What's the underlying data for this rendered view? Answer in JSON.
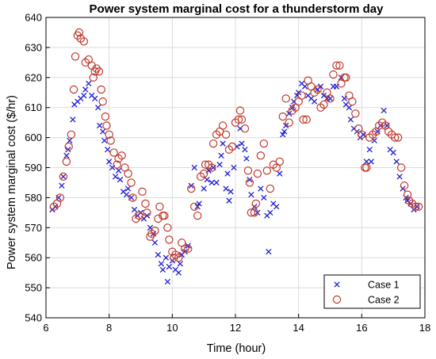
{
  "chart_data": {
    "type": "scatter",
    "title": "Power system marginal cost for a thunderstorm day",
    "xlabel": "Time (hour)",
    "ylabel": "Power system marginal cost ($/hr)",
    "xlim": [
      6,
      18
    ],
    "ylim": [
      540,
      640
    ],
    "xticks": [
      6,
      8,
      10,
      12,
      14,
      16,
      18
    ],
    "yticks": [
      540,
      550,
      560,
      570,
      580,
      590,
      600,
      610,
      620,
      630,
      640
    ],
    "grid": true,
    "legend_position": "bottom-right",
    "series": [
      {
        "name": "Case 1",
        "marker": "x",
        "color": "#1f1fd0",
        "points": [
          [
            6.2,
            576
          ],
          [
            6.3,
            577
          ],
          [
            6.4,
            580
          ],
          [
            6.5,
            584
          ],
          [
            6.55,
            587
          ],
          [
            6.65,
            594
          ],
          [
            6.7,
            596
          ],
          [
            6.75,
            599
          ],
          [
            6.85,
            606
          ],
          [
            6.9,
            611
          ],
          [
            7.0,
            612
          ],
          [
            7.1,
            613
          ],
          [
            7.2,
            614
          ],
          [
            7.25,
            616
          ],
          [
            7.35,
            618
          ],
          [
            7.45,
            614
          ],
          [
            7.55,
            613
          ],
          [
            7.65,
            610
          ],
          [
            7.7,
            604
          ],
          [
            7.8,
            602
          ],
          [
            7.85,
            599
          ],
          [
            7.95,
            596
          ],
          [
            8.0,
            592
          ],
          [
            8.1,
            590
          ],
          [
            8.2,
            587
          ],
          [
            8.3,
            589
          ],
          [
            8.35,
            586
          ],
          [
            8.45,
            582
          ],
          [
            8.55,
            581
          ],
          [
            8.6,
            583
          ],
          [
            8.7,
            580
          ],
          [
            8.8,
            576
          ],
          [
            8.9,
            574
          ],
          [
            9.0,
            575
          ],
          [
            9.1,
            573
          ],
          [
            9.2,
            574
          ],
          [
            9.3,
            570
          ],
          [
            9.4,
            568
          ],
          [
            9.45,
            565
          ],
          [
            9.55,
            561
          ],
          [
            9.65,
            558
          ],
          [
            9.7,
            556
          ],
          [
            9.8,
            560
          ],
          [
            9.85,
            552
          ],
          [
            9.9,
            557
          ],
          [
            10.0,
            559
          ],
          [
            10.1,
            556
          ],
          [
            10.2,
            555
          ],
          [
            10.25,
            558
          ],
          [
            10.3,
            561
          ],
          [
            10.4,
            562
          ],
          [
            10.5,
            564
          ],
          [
            10.6,
            584
          ],
          [
            10.7,
            590
          ],
          [
            10.8,
            577
          ],
          [
            10.85,
            578
          ],
          [
            11.0,
            583
          ],
          [
            11.1,
            586
          ],
          [
            11.15,
            589
          ],
          [
            11.25,
            585
          ],
          [
            11.3,
            590
          ],
          [
            11.4,
            585
          ],
          [
            11.5,
            591
          ],
          [
            11.55,
            594
          ],
          [
            11.6,
            598
          ],
          [
            11.7,
            583
          ],
          [
            11.75,
            588
          ],
          [
            11.8,
            579
          ],
          [
            11.85,
            582
          ],
          [
            11.95,
            590
          ],
          [
            12.05,
            597
          ],
          [
            12.15,
            603
          ],
          [
            12.2,
            598
          ],
          [
            12.3,
            596
          ],
          [
            12.35,
            593
          ],
          [
            12.45,
            586
          ],
          [
            12.5,
            581
          ],
          [
            12.6,
            577
          ],
          [
            12.7,
            575
          ],
          [
            12.8,
            583
          ],
          [
            12.9,
            580
          ],
          [
            13.0,
            574
          ],
          [
            13.05,
            562
          ],
          [
            13.1,
            575
          ],
          [
            13.2,
            578
          ],
          [
            13.3,
            577
          ],
          [
            13.4,
            588
          ],
          [
            13.5,
            601
          ],
          [
            13.55,
            602
          ],
          [
            13.6,
            604
          ],
          [
            13.7,
            608
          ],
          [
            13.8,
            610
          ],
          [
            13.85,
            612
          ],
          [
            13.95,
            614
          ],
          [
            14.0,
            615
          ],
          [
            14.1,
            618
          ],
          [
            14.2,
            617
          ],
          [
            14.3,
            614
          ],
          [
            14.4,
            613
          ],
          [
            14.5,
            612
          ],
          [
            14.6,
            616
          ],
          [
            14.7,
            617
          ],
          [
            14.8,
            614
          ],
          [
            14.9,
            613
          ],
          [
            15.0,
            613
          ],
          [
            15.1,
            617
          ],
          [
            15.2,
            617
          ],
          [
            15.35,
            620
          ],
          [
            15.45,
            613
          ],
          [
            15.5,
            611
          ],
          [
            15.6,
            610
          ],
          [
            15.65,
            606
          ],
          [
            15.75,
            603
          ],
          [
            15.85,
            602
          ],
          [
            15.95,
            600
          ],
          [
            16.05,
            601
          ],
          [
            16.15,
            592
          ],
          [
            16.25,
            596
          ],
          [
            16.3,
            592
          ],
          [
            16.4,
            599
          ],
          [
            16.5,
            602
          ],
          [
            16.6,
            604
          ],
          [
            16.7,
            609
          ],
          [
            16.8,
            604
          ],
          [
            16.9,
            596
          ],
          [
            17.0,
            595
          ],
          [
            17.1,
            592
          ],
          [
            17.2,
            587
          ],
          [
            17.3,
            583
          ],
          [
            17.4,
            580
          ],
          [
            17.45,
            579
          ],
          [
            17.55,
            578
          ],
          [
            17.65,
            576
          ],
          [
            17.75,
            577
          ]
        ]
      },
      {
        "name": "Case 2",
        "marker": "o",
        "color": "#c0392b",
        "points": [
          [
            6.25,
            577
          ],
          [
            6.35,
            578
          ],
          [
            6.45,
            580
          ],
          [
            6.55,
            587
          ],
          [
            6.65,
            592
          ],
          [
            6.72,
            597
          ],
          [
            6.8,
            601
          ],
          [
            6.88,
            616
          ],
          [
            6.93,
            627
          ],
          [
            7.0,
            634
          ],
          [
            7.05,
            635
          ],
          [
            7.1,
            633
          ],
          [
            7.2,
            632
          ],
          [
            7.25,
            625
          ],
          [
            7.35,
            626
          ],
          [
            7.45,
            624
          ],
          [
            7.5,
            620
          ],
          [
            7.55,
            622
          ],
          [
            7.6,
            623
          ],
          [
            7.68,
            622
          ],
          [
            7.75,
            616
          ],
          [
            7.8,
            612
          ],
          [
            7.88,
            607
          ],
          [
            7.92,
            604
          ],
          [
            8.0,
            601
          ],
          [
            8.05,
            599
          ],
          [
            8.15,
            595
          ],
          [
            8.25,
            591
          ],
          [
            8.3,
            593
          ],
          [
            8.4,
            594
          ],
          [
            8.5,
            590
          ],
          [
            8.6,
            588
          ],
          [
            8.7,
            585
          ],
          [
            8.75,
            580
          ],
          [
            8.85,
            573
          ],
          [
            8.95,
            574
          ],
          [
            9.05,
            582
          ],
          [
            9.15,
            578
          ],
          [
            9.2,
            575
          ],
          [
            9.3,
            567
          ],
          [
            9.35,
            568
          ],
          [
            9.45,
            569
          ],
          [
            9.55,
            573
          ],
          [
            9.6,
            577
          ],
          [
            9.7,
            574
          ],
          [
            9.75,
            574
          ],
          [
            9.85,
            570
          ],
          [
            9.9,
            566
          ],
          [
            10.0,
            562
          ],
          [
            10.05,
            560
          ],
          [
            10.1,
            561
          ],
          [
            10.2,
            560
          ],
          [
            10.3,
            565
          ],
          [
            10.4,
            563
          ],
          [
            10.5,
            563
          ],
          [
            10.6,
            583
          ],
          [
            10.7,
            577
          ],
          [
            10.8,
            574
          ],
          [
            10.9,
            587
          ],
          [
            11.0,
            588
          ],
          [
            11.05,
            591
          ],
          [
            11.15,
            591
          ],
          [
            11.25,
            590
          ],
          [
            11.3,
            598
          ],
          [
            11.4,
            601
          ],
          [
            11.5,
            602
          ],
          [
            11.6,
            604
          ],
          [
            11.7,
            601
          ],
          [
            11.8,
            596
          ],
          [
            11.9,
            597
          ],
          [
            12.0,
            605
          ],
          [
            12.1,
            606
          ],
          [
            12.15,
            609
          ],
          [
            12.2,
            606
          ],
          [
            12.3,
            603
          ],
          [
            12.4,
            589
          ],
          [
            12.45,
            585
          ],
          [
            12.5,
            575
          ],
          [
            12.6,
            575
          ],
          [
            12.65,
            578
          ],
          [
            12.7,
            588
          ],
          [
            12.8,
            594
          ],
          [
            12.9,
            598
          ],
          [
            13.0,
            589
          ],
          [
            13.1,
            583
          ],
          [
            13.2,
            591
          ],
          [
            13.3,
            590
          ],
          [
            13.4,
            592
          ],
          [
            13.5,
            607
          ],
          [
            13.6,
            613
          ],
          [
            13.7,
            605
          ],
          [
            13.8,
            609
          ],
          [
            13.9,
            610
          ],
          [
            14.0,
            612
          ],
          [
            14.1,
            614
          ],
          [
            14.15,
            606
          ],
          [
            14.25,
            606
          ],
          [
            14.3,
            619
          ],
          [
            14.4,
            617
          ],
          [
            14.5,
            615
          ],
          [
            14.6,
            616
          ],
          [
            14.7,
            610
          ],
          [
            14.8,
            611
          ],
          [
            14.9,
            615
          ],
          [
            15.0,
            613
          ],
          [
            15.1,
            621
          ],
          [
            15.2,
            624
          ],
          [
            15.3,
            624
          ],
          [
            15.35,
            618
          ],
          [
            15.45,
            620
          ],
          [
            15.5,
            620
          ],
          [
            15.6,
            614
          ],
          [
            15.7,
            612
          ],
          [
            15.8,
            608
          ],
          [
            15.9,
            603
          ],
          [
            16.0,
            601
          ],
          [
            16.1,
            590
          ],
          [
            16.15,
            590
          ],
          [
            16.25,
            600
          ],
          [
            16.35,
            601
          ],
          [
            16.45,
            602
          ],
          [
            16.55,
            604
          ],
          [
            16.65,
            605
          ],
          [
            16.75,
            604
          ],
          [
            16.85,
            602
          ],
          [
            16.95,
            601
          ],
          [
            17.05,
            600
          ],
          [
            17.15,
            600
          ],
          [
            17.25,
            590
          ],
          [
            17.35,
            584
          ],
          [
            17.45,
            581
          ],
          [
            17.5,
            579
          ],
          [
            17.6,
            578
          ],
          [
            17.7,
            577
          ],
          [
            17.8,
            577
          ]
        ]
      }
    ]
  }
}
